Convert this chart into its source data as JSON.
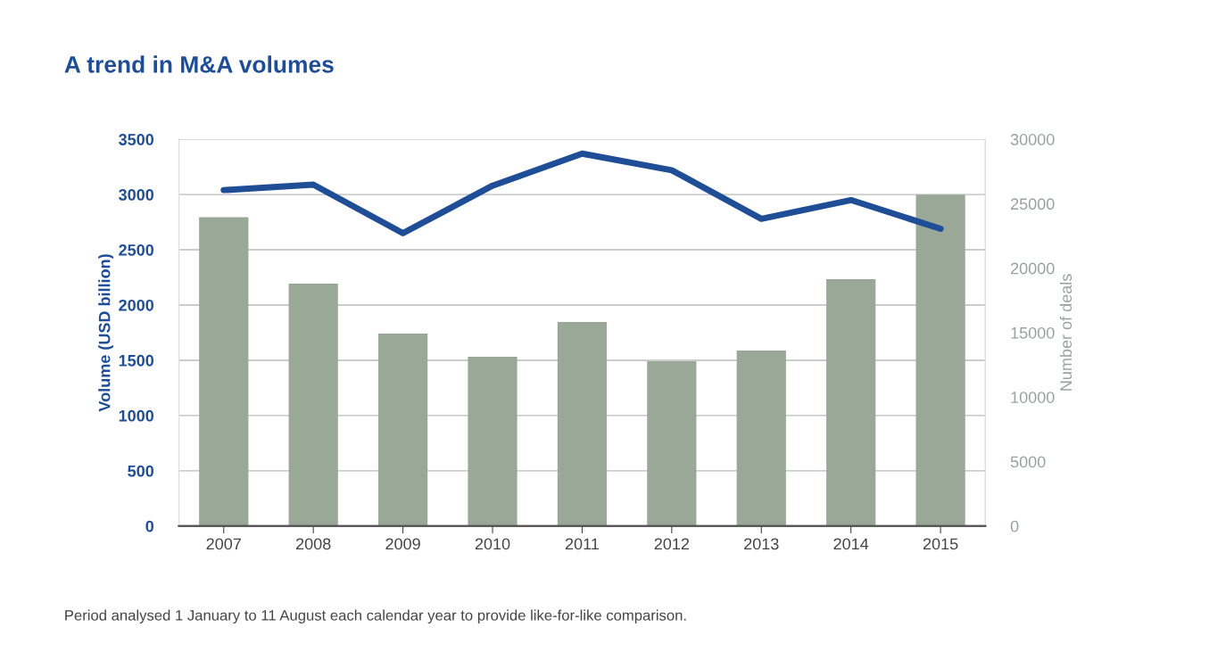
{
  "chart_data": {
    "type": "bar",
    "title": "A trend in M&A volumes",
    "ylabel": "Volume (USD billion)",
    "y2label": "Number of deals",
    "categories": [
      "2007",
      "2008",
      "2009",
      "2010",
      "2011",
      "2012",
      "2013",
      "2014",
      "2015"
    ],
    "series": [
      {
        "axis": "y2",
        "color": "#9aa898",
        "values": [
          23950,
          18800,
          14930,
          13130,
          15830,
          12790,
          13620,
          19150,
          25710
        ]
      },
      {
        "type": "line",
        "axis": "y",
        "color": "#1f4e96",
        "values": [
          3040,
          3090,
          2650,
          3080,
          3370,
          3220,
          2780,
          2950,
          2690
        ]
      }
    ],
    "ylim": [
      0,
      3500
    ],
    "yticks": [
      0,
      500,
      1000,
      1500,
      2000,
      2500,
      3000,
      3500
    ],
    "y2lim": [
      0,
      30000
    ],
    "y2ticks": [
      0,
      5000,
      10000,
      15000,
      20000,
      25000,
      30000
    ],
    "grid": "y",
    "legend": false,
    "marker": "none",
    "line_style": "solid",
    "annotations": [
      "Period analysed 1 January to 11 August each calendar year to provide like-for-like comparison."
    ]
  }
}
